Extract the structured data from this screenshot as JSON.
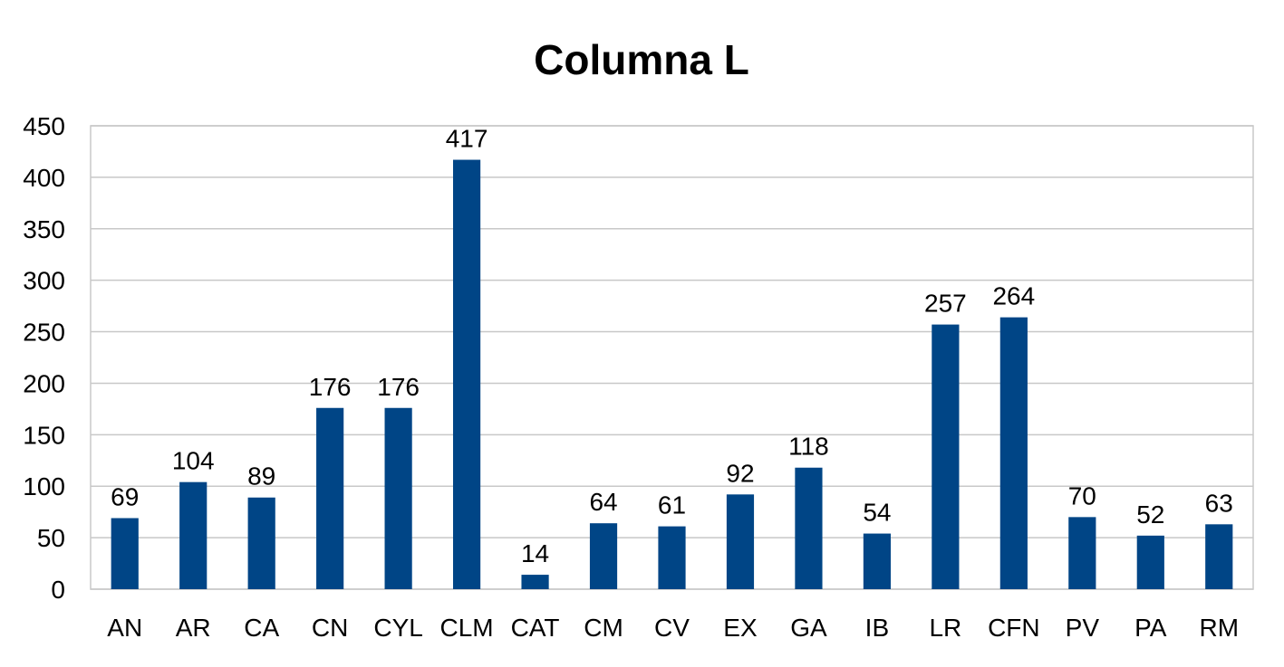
{
  "chart_data": {
    "type": "bar",
    "title": "Columna L",
    "xlabel": "",
    "ylabel": "",
    "categories": [
      "AN",
      "AR",
      "CA",
      "CN",
      "CYL",
      "CLM",
      "CAT",
      "CM",
      "CV",
      "EX",
      "GA",
      "IB",
      "LR",
      "CFN",
      "PV",
      "PA",
      "RM"
    ],
    "values": [
      69,
      104,
      89,
      176,
      176,
      417,
      14,
      64,
      61,
      92,
      118,
      54,
      257,
      264,
      70,
      52,
      63
    ],
    "ylim": [
      0,
      450
    ],
    "yticks": [
      0,
      50,
      100,
      150,
      200,
      250,
      300,
      350,
      400,
      450
    ],
    "grid": true,
    "legend": "none",
    "data_labels": true,
    "bar_color": "#004586"
  }
}
